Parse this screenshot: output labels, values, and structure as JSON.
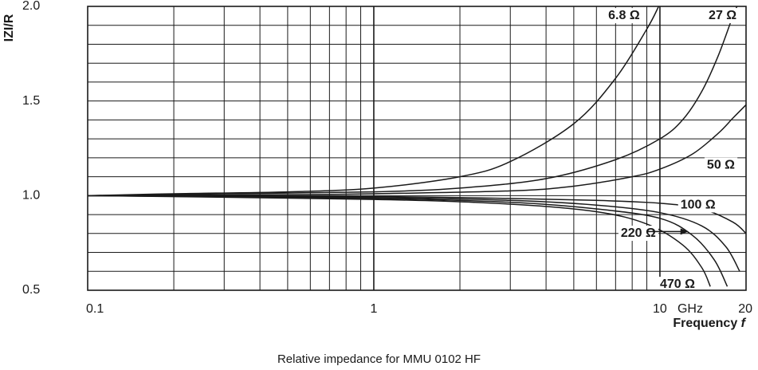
{
  "chart_data": {
    "type": "line",
    "caption": "Relative impedance for MMU 0102 HF",
    "ylabel": "IZI/R",
    "xlabel": "Frequency f",
    "x_scale": "log",
    "xlim": [
      0.1,
      20
    ],
    "ylim": [
      0.5,
      2.0
    ],
    "y_ticks": [
      {
        "v": 0.5,
        "label": "0.5"
      },
      {
        "v": 1.0,
        "label": "1.0"
      },
      {
        "v": 1.5,
        "label": "1.5"
      },
      {
        "v": 2.0,
        "label": "2.0"
      }
    ],
    "x_ticks": [
      {
        "v": 0.1,
        "label": "0.1"
      },
      {
        "v": 1,
        "label": "1"
      },
      {
        "v": 10,
        "label": "10"
      },
      {
        "v": 20,
        "label": "20"
      }
    ],
    "x_unit": "GHz",
    "grid": true,
    "series": [
      {
        "name": "6.8 Ω",
        "points": [
          [
            0.1,
            1.0
          ],
          [
            0.2,
            1.01
          ],
          [
            0.5,
            1.02
          ],
          [
            1,
            1.04
          ],
          [
            2,
            1.1
          ],
          [
            3,
            1.18
          ],
          [
            5,
            1.38
          ],
          [
            7,
            1.62
          ],
          [
            9,
            1.88
          ],
          [
            9.9,
            2.0
          ]
        ]
      },
      {
        "name": "27 Ω",
        "points": [
          [
            0.1,
            1.0
          ],
          [
            0.3,
            1.01
          ],
          [
            1,
            1.02
          ],
          [
            2,
            1.04
          ],
          [
            4,
            1.09
          ],
          [
            7,
            1.19
          ],
          [
            10,
            1.3
          ],
          [
            12,
            1.4
          ],
          [
            14,
            1.55
          ],
          [
            16,
            1.74
          ],
          [
            18,
            1.95
          ],
          [
            18.6,
            2.0
          ]
        ]
      },
      {
        "name": "50 Ω",
        "points": [
          [
            0.1,
            1.0
          ],
          [
            0.5,
            1.005
          ],
          [
            1,
            1.01
          ],
          [
            3,
            1.025
          ],
          [
            5,
            1.05
          ],
          [
            8,
            1.1
          ],
          [
            10,
            1.14
          ],
          [
            13,
            1.22
          ],
          [
            16,
            1.33
          ],
          [
            18,
            1.41
          ],
          [
            20,
            1.48
          ]
        ]
      },
      {
        "name": "100 Ω",
        "points": [
          [
            0.1,
            1.0
          ],
          [
            1,
            0.995
          ],
          [
            3,
            0.985
          ],
          [
            6,
            0.975
          ],
          [
            10,
            0.96
          ],
          [
            14,
            0.93
          ],
          [
            18,
            0.86
          ],
          [
            20,
            0.8
          ]
        ]
      },
      {
        "name": "",
        "points": [
          [
            0.1,
            1.0
          ],
          [
            1,
            0.99
          ],
          [
            3,
            0.975
          ],
          [
            6,
            0.95
          ],
          [
            10,
            0.91
          ],
          [
            14,
            0.84
          ],
          [
            17,
            0.73
          ],
          [
            19,
            0.6
          ]
        ]
      },
      {
        "name": "",
        "points": [
          [
            0.1,
            1.0
          ],
          [
            1,
            0.985
          ],
          [
            3,
            0.965
          ],
          [
            6,
            0.93
          ],
          [
            10,
            0.88
          ],
          [
            13,
            0.79
          ],
          [
            15.5,
            0.66
          ],
          [
            17.2,
            0.52
          ]
        ]
      },
      {
        "name": "",
        "points": [
          [
            0.1,
            1.0
          ],
          [
            1,
            0.98
          ],
          [
            3,
            0.955
          ],
          [
            6,
            0.915
          ],
          [
            9,
            0.85
          ],
          [
            12,
            0.74
          ],
          [
            14,
            0.62
          ],
          [
            15,
            0.52
          ]
        ]
      }
    ],
    "labels": [
      {
        "text": "6.8 Ω",
        "at": [
          6.6,
          1.95
        ]
      },
      {
        "text": "27 Ω",
        "at": [
          14.8,
          1.95
        ]
      },
      {
        "text": "50 Ω",
        "at": [
          14.6,
          1.16
        ]
      },
      {
        "text": "100 Ω",
        "at": [
          11.8,
          0.95
        ]
      },
      {
        "text": "220 Ω",
        "at": [
          7.3,
          0.8
        ]
      },
      {
        "text": "470 Ω",
        "at": [
          10.0,
          0.53
        ]
      }
    ],
    "arrow": {
      "from": [
        9.0,
        0.81
      ],
      "to": [
        12.5,
        0.81
      ]
    }
  }
}
